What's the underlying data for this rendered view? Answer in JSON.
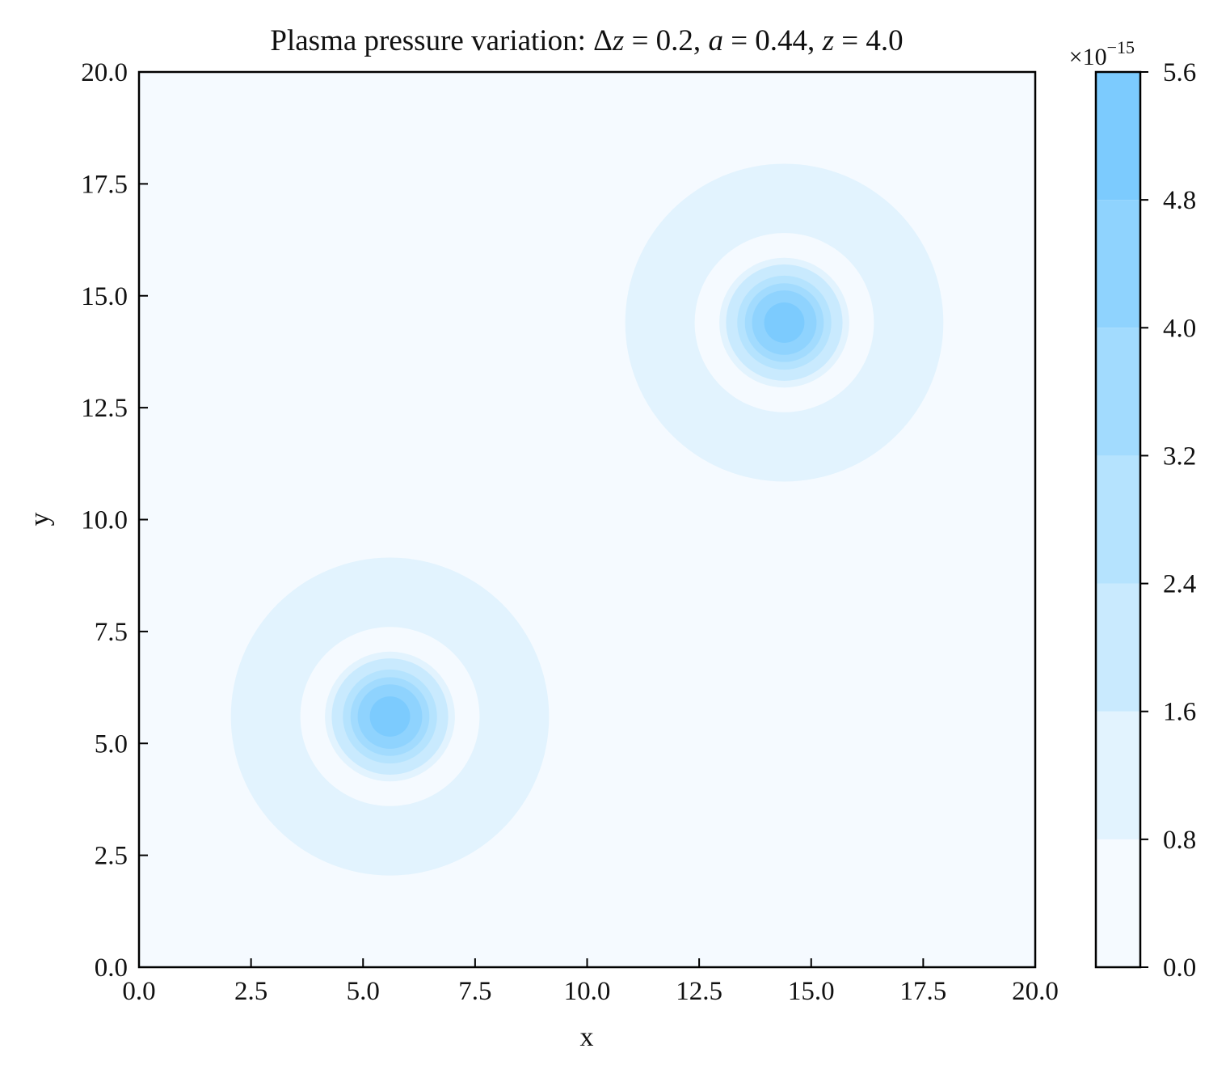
{
  "chart_data": {
    "type": "contourf",
    "title_parts": [
      {
        "text": "Plasma pressure variation: Δ",
        "italic": false
      },
      {
        "text": "z",
        "italic": true
      },
      {
        "text": " = 0.2, ",
        "italic": false
      },
      {
        "text": "a",
        "italic": true
      },
      {
        "text": " = 0.44, ",
        "italic": false
      },
      {
        "text": "z",
        "italic": true
      },
      {
        "text": " = 4.0",
        "italic": false
      }
    ],
    "xlabel": "x",
    "ylabel": "y",
    "xlim": [
      0,
      20
    ],
    "ylim": [
      0,
      20
    ],
    "xticks": [
      "0.0",
      "2.5",
      "5.0",
      "7.5",
      "10.0",
      "12.5",
      "15.0",
      "17.5",
      "20.0"
    ],
    "yticks": [
      "0.0",
      "2.5",
      "5.0",
      "7.5",
      "10.0",
      "12.5",
      "15.0",
      "17.5",
      "20.0"
    ],
    "tick_values": [
      0,
      2.5,
      5,
      7.5,
      10,
      12.5,
      15,
      17.5,
      20
    ],
    "sources": [
      {
        "name": "lower-left",
        "center": [
          5.6,
          5.6
        ]
      },
      {
        "name": "upper-right",
        "center": [
          14.4,
          14.4
        ]
      }
    ],
    "contour_rings": [
      {
        "level_index": 1,
        "r_outer": 3.55,
        "r_inner": 2.0
      },
      {
        "level_index": 1,
        "r_outer": 1.45,
        "r_inner": 0
      },
      {
        "level_index": 2,
        "r_outer": 1.3,
        "r_inner": 0
      },
      {
        "level_index": 3,
        "r_outer": 1.05,
        "r_inner": 0
      },
      {
        "level_index": 4,
        "r_outer": 0.88,
        "r_inner": 0
      },
      {
        "level_index": 5,
        "r_outer": 0.72,
        "r_inner": 0
      },
      {
        "level_index": 6,
        "r_outer": 0.45,
        "r_inner": 0
      }
    ],
    "colorbar": {
      "levels": [
        0.0,
        0.8,
        1.6,
        2.4,
        3.2,
        4.0,
        4.8,
        5.6
      ],
      "tick_labels": [
        "0.0",
        "0.8",
        "1.6",
        "2.4",
        "3.2",
        "4.0",
        "4.8",
        "5.6"
      ],
      "colors": [
        "#f5faff",
        "#e2f3fe",
        "#c9eafe",
        "#b5e3fe",
        "#a2dbfe",
        "#8fd3fe",
        "#7ccbfe"
      ],
      "multiplier": {
        "base": "×10",
        "exponent": "−15"
      }
    }
  },
  "colors": {
    "axis": "#000000",
    "background": "#f5faff"
  }
}
